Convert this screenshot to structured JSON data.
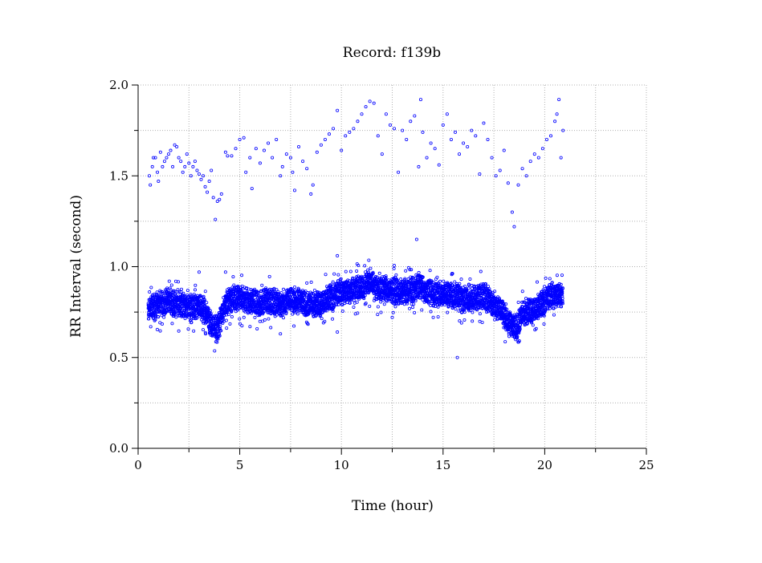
{
  "chart_data": {
    "type": "scatter",
    "title": "Record:  f139b",
    "xlabel": "Time (hour)",
    "ylabel": "RR Interval (second)",
    "xlim": [
      0,
      25
    ],
    "ylim": [
      0.0,
      2.0
    ],
    "x_ticks": [
      "0",
      "5",
      "10",
      "15",
      "20",
      "25"
    ],
    "y_ticks": [
      "0.0",
      "0.5",
      "1.0",
      "1.5",
      "2.0"
    ],
    "grid": true,
    "legend": "none",
    "marker_color": "#0000ff",
    "series": [
      {
        "points": [
          [
            0.55,
            1.5
          ],
          [
            0.6,
            1.45
          ],
          [
            0.7,
            1.55
          ],
          [
            0.75,
            1.6
          ],
          [
            0.85,
            1.6
          ],
          [
            0.95,
            1.52
          ],
          [
            1.0,
            1.47
          ],
          [
            1.1,
            1.63
          ],
          [
            1.2,
            1.55
          ],
          [
            1.3,
            1.58
          ],
          [
            1.4,
            1.6
          ],
          [
            1.5,
            1.62
          ],
          [
            1.6,
            1.64
          ],
          [
            1.7,
            1.55
          ],
          [
            1.8,
            1.67
          ],
          [
            1.9,
            1.66
          ],
          [
            2.0,
            1.6
          ],
          [
            2.1,
            1.58
          ],
          [
            2.2,
            1.52
          ],
          [
            2.3,
            1.55
          ],
          [
            2.4,
            1.62
          ],
          [
            2.5,
            1.57
          ],
          [
            2.6,
            1.5
          ],
          [
            2.7,
            1.55
          ],
          [
            2.8,
            1.58
          ],
          [
            2.9,
            1.53
          ],
          [
            3.0,
            1.51
          ],
          [
            3.1,
            1.48
          ],
          [
            3.2,
            1.5
          ],
          [
            3.3,
            1.44
          ],
          [
            3.4,
            1.41
          ],
          [
            3.5,
            1.47
          ],
          [
            3.6,
            1.53
          ],
          [
            3.7,
            1.38
          ],
          [
            3.8,
            1.26
          ],
          [
            3.9,
            1.36
          ],
          [
            4.0,
            1.37
          ],
          [
            4.1,
            1.4
          ],
          [
            4.3,
            1.63
          ],
          [
            4.4,
            1.61
          ],
          [
            4.6,
            1.61
          ],
          [
            4.8,
            1.65
          ],
          [
            5.0,
            1.7
          ],
          [
            5.2,
            1.71
          ],
          [
            5.3,
            1.52
          ],
          [
            5.5,
            1.6
          ],
          [
            5.6,
            1.43
          ],
          [
            5.8,
            1.65
          ],
          [
            6.0,
            1.57
          ],
          [
            6.2,
            1.64
          ],
          [
            6.4,
            1.68
          ],
          [
            6.6,
            1.6
          ],
          [
            6.8,
            1.7
          ],
          [
            7.0,
            1.5
          ],
          [
            7.1,
            1.55
          ],
          [
            7.3,
            1.62
          ],
          [
            7.5,
            1.6
          ],
          [
            7.6,
            1.52
          ],
          [
            7.7,
            1.42
          ],
          [
            7.9,
            1.66
          ],
          [
            8.1,
            1.58
          ],
          [
            8.3,
            1.54
          ],
          [
            8.5,
            1.4
          ],
          [
            8.6,
            1.45
          ],
          [
            8.8,
            1.63
          ],
          [
            9.0,
            1.67
          ],
          [
            9.2,
            1.7
          ],
          [
            9.4,
            1.73
          ],
          [
            9.6,
            1.76
          ],
          [
            9.8,
            1.86
          ],
          [
            10.0,
            1.64
          ],
          [
            10.2,
            1.72
          ],
          [
            10.4,
            1.74
          ],
          [
            10.6,
            1.76
          ],
          [
            10.8,
            1.8
          ],
          [
            11.0,
            1.84
          ],
          [
            11.2,
            1.88
          ],
          [
            11.4,
            1.91
          ],
          [
            11.6,
            1.9
          ],
          [
            11.8,
            1.72
          ],
          [
            12.0,
            1.62
          ],
          [
            12.2,
            1.84
          ],
          [
            12.4,
            1.78
          ],
          [
            12.6,
            1.76
          ],
          [
            12.8,
            1.52
          ],
          [
            13.0,
            1.75
          ],
          [
            13.2,
            1.7
          ],
          [
            13.4,
            1.8
          ],
          [
            13.6,
            1.83
          ],
          [
            13.8,
            1.55
          ],
          [
            13.9,
            1.92
          ],
          [
            14.0,
            1.74
          ],
          [
            14.2,
            1.6
          ],
          [
            14.4,
            1.68
          ],
          [
            14.6,
            1.65
          ],
          [
            14.8,
            1.56
          ],
          [
            15.0,
            1.78
          ],
          [
            15.2,
            1.84
          ],
          [
            15.4,
            1.7
          ],
          [
            15.6,
            1.74
          ],
          [
            15.8,
            1.62
          ],
          [
            16.0,
            1.68
          ],
          [
            16.2,
            1.66
          ],
          [
            16.4,
            1.75
          ],
          [
            16.6,
            1.72
          ],
          [
            16.8,
            1.51
          ],
          [
            17.0,
            1.79
          ],
          [
            17.2,
            1.7
          ],
          [
            17.4,
            1.6
          ],
          [
            17.6,
            1.5
          ],
          [
            17.8,
            1.53
          ],
          [
            18.0,
            1.64
          ],
          [
            18.2,
            1.46
          ],
          [
            18.4,
            1.3
          ],
          [
            18.5,
            1.22
          ],
          [
            18.7,
            1.45
          ],
          [
            18.9,
            1.54
          ],
          [
            19.1,
            1.5
          ],
          [
            19.3,
            1.58
          ],
          [
            19.5,
            1.62
          ],
          [
            19.7,
            1.6
          ],
          [
            19.9,
            1.65
          ],
          [
            20.1,
            1.7
          ],
          [
            20.3,
            1.72
          ],
          [
            20.5,
            1.8
          ],
          [
            20.6,
            1.84
          ],
          [
            20.7,
            1.92
          ],
          [
            20.8,
            1.6
          ],
          [
            20.9,
            1.75
          ],
          [
            9.8,
            1.06
          ],
          [
            13.7,
            1.15
          ],
          [
            15.7,
            0.5
          ],
          [
            7.0,
            0.63
          ],
          [
            9.8,
            0.64
          ],
          [
            3.0,
            0.97
          ],
          [
            4.3,
            0.97
          ]
        ],
        "trend": [
          [
            0.5,
            0.76
          ],
          [
            1.0,
            0.79
          ],
          [
            1.5,
            0.81
          ],
          [
            2.0,
            0.79
          ],
          [
            2.5,
            0.78
          ],
          [
            3.0,
            0.77
          ],
          [
            3.3,
            0.76
          ],
          [
            3.6,
            0.68
          ],
          [
            3.9,
            0.65
          ],
          [
            4.1,
            0.72
          ],
          [
            4.3,
            0.8
          ],
          [
            4.8,
            0.83
          ],
          [
            5.5,
            0.81
          ],
          [
            6.0,
            0.8
          ],
          [
            6.5,
            0.81
          ],
          [
            7.0,
            0.8
          ],
          [
            7.5,
            0.82
          ],
          [
            8.0,
            0.8
          ],
          [
            8.5,
            0.79
          ],
          [
            9.0,
            0.8
          ],
          [
            9.5,
            0.84
          ],
          [
            10.0,
            0.86
          ],
          [
            10.5,
            0.87
          ],
          [
            11.0,
            0.88
          ],
          [
            11.4,
            0.92
          ],
          [
            11.8,
            0.88
          ],
          [
            12.5,
            0.87
          ],
          [
            13.0,
            0.86
          ],
          [
            13.5,
            0.87
          ],
          [
            13.8,
            0.9
          ],
          [
            14.2,
            0.86
          ],
          [
            15.0,
            0.85
          ],
          [
            15.5,
            0.84
          ],
          [
            16.0,
            0.82
          ],
          [
            16.5,
            0.83
          ],
          [
            17.0,
            0.84
          ],
          [
            17.5,
            0.8
          ],
          [
            18.0,
            0.74
          ],
          [
            18.3,
            0.67
          ],
          [
            18.6,
            0.66
          ],
          [
            18.9,
            0.74
          ],
          [
            19.3,
            0.76
          ],
          [
            19.7,
            0.78
          ],
          [
            20.0,
            0.82
          ],
          [
            20.4,
            0.84
          ],
          [
            20.9,
            0.85
          ]
        ]
      }
    ]
  }
}
